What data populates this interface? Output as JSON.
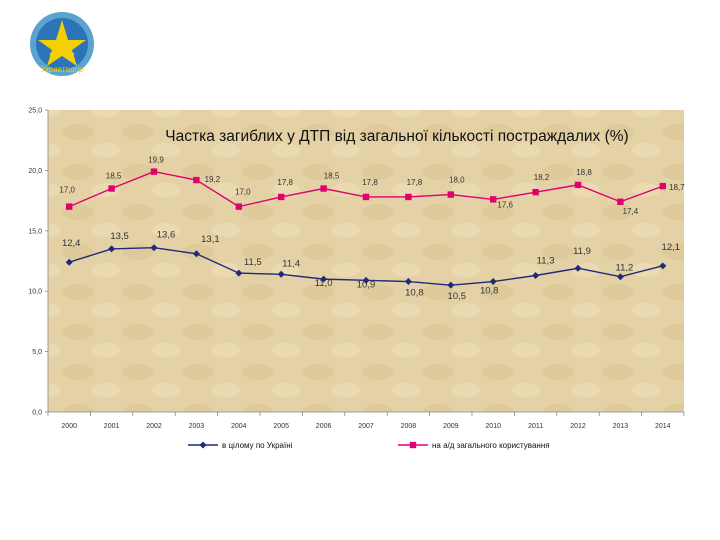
{
  "logo": {
    "text": "Укравтодор",
    "colors": {
      "ring": "#5aa3d0",
      "inner": "#1a5ea8",
      "emblem": "#f5d000"
    }
  },
  "chart_data": {
    "type": "line",
    "title": "Частка загиблих у ДТП  від загальної кількості постраждалих (%)",
    "categories": [
      "2000",
      "2001",
      "2002",
      "2003",
      "2004",
      "2005",
      "2006",
      "2007",
      "2008",
      "2009",
      "2010",
      "2011",
      "2012",
      "2013",
      "2014"
    ],
    "y_ticks": [
      "0,0",
      "5,0",
      "10,0",
      "15,0",
      "20,0",
      "25,0"
    ],
    "ylim": [
      0,
      25
    ],
    "series": [
      {
        "name": "в цілому по Україні",
        "color": "#1f2a7a",
        "marker": "diamond",
        "values": [
          12.4,
          13.5,
          13.6,
          13.1,
          11.5,
          11.4,
          11.0,
          10.9,
          10.8,
          10.5,
          10.8,
          11.3,
          11.9,
          11.2,
          12.1
        ],
        "labels": [
          "12,4",
          "13,5",
          "13,6",
          "13,1",
          "11,5",
          "11,4",
          "11,0",
          "10,9",
          "10,8",
          "10,5",
          "10,8",
          "11,3",
          "11,9",
          "11,2",
          "12,1"
        ]
      },
      {
        "name": "на а/д загального користування",
        "color": "#e0006e",
        "marker": "square",
        "values": [
          17.0,
          18.5,
          19.9,
          19.2,
          17.0,
          17.8,
          18.5,
          17.8,
          17.8,
          18.0,
          17.6,
          18.2,
          18.8,
          17.4,
          18.7
        ],
        "labels": [
          "17,0",
          "18,5",
          "19,9",
          "19,2",
          "17,0",
          "17,8",
          "18,5",
          "17,8",
          "17,8",
          "18,0",
          "17,6",
          "18,2",
          "18,8",
          "17,4",
          "18,7"
        ]
      }
    ],
    "legend_position": "bottom",
    "background": "#e3d0a4"
  }
}
